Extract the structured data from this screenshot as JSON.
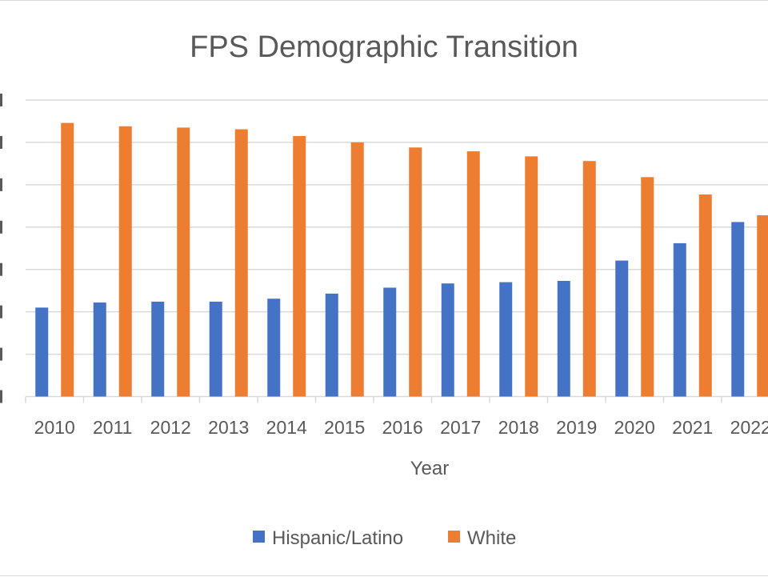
{
  "chart_data": {
    "type": "bar",
    "title": "FPS Demographic Transition",
    "xlabel": "Year",
    "ylabel": "",
    "categories": [
      "2010",
      "2011",
      "2012",
      "2013",
      "2014",
      "2015",
      "2016",
      "2017",
      "2018",
      "2019",
      "2020",
      "2021",
      "2022"
    ],
    "series": [
      {
        "name": "Hispanic/Latino",
        "color": "#4472C4",
        "values": [
          21.0,
          22.2,
          22.4,
          22.4,
          23.1,
          24.3,
          25.7,
          26.7,
          27.0,
          27.3,
          32.1,
          36.2,
          41.2
        ]
      },
      {
        "name": "White",
        "color": "#ED7D31",
        "values": [
          64.6,
          63.8,
          63.5,
          63.1,
          61.5,
          60.0,
          58.8,
          57.9,
          56.7,
          55.6,
          51.8,
          47.7,
          42.8
        ]
      }
    ],
    "ylim": [
      0,
      70
    ],
    "ytick_step": 10,
    "grid": true,
    "legend_position": "bottom"
  }
}
